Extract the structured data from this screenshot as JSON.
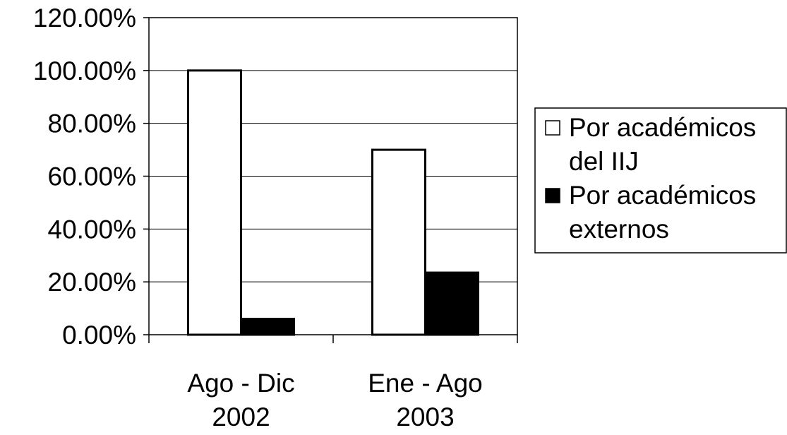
{
  "chart_data": {
    "type": "bar",
    "categories": [
      [
        "Ago - Dic",
        "2002"
      ],
      [
        "Ene - Ago",
        "2003"
      ]
    ],
    "series": [
      {
        "name": [
          "Por académicos",
          "del IIJ"
        ],
        "values": [
          100.0,
          70.0
        ],
        "fill": "#ffffff",
        "stroke": "#000000"
      },
      {
        "name": [
          "Por académicos",
          "externos"
        ],
        "values": [
          6.0,
          23.5
        ],
        "fill": "#000000",
        "stroke": "#000000"
      }
    ],
    "y_ticks": [
      "0.00%",
      "20.00%",
      "40.00%",
      "60.00%",
      "80.00%",
      "100.00%",
      "120.00%"
    ],
    "ylim": [
      0,
      120
    ],
    "grid": true,
    "legend_position": "right",
    "title": "",
    "xlabel": "",
    "ylabel": ""
  }
}
